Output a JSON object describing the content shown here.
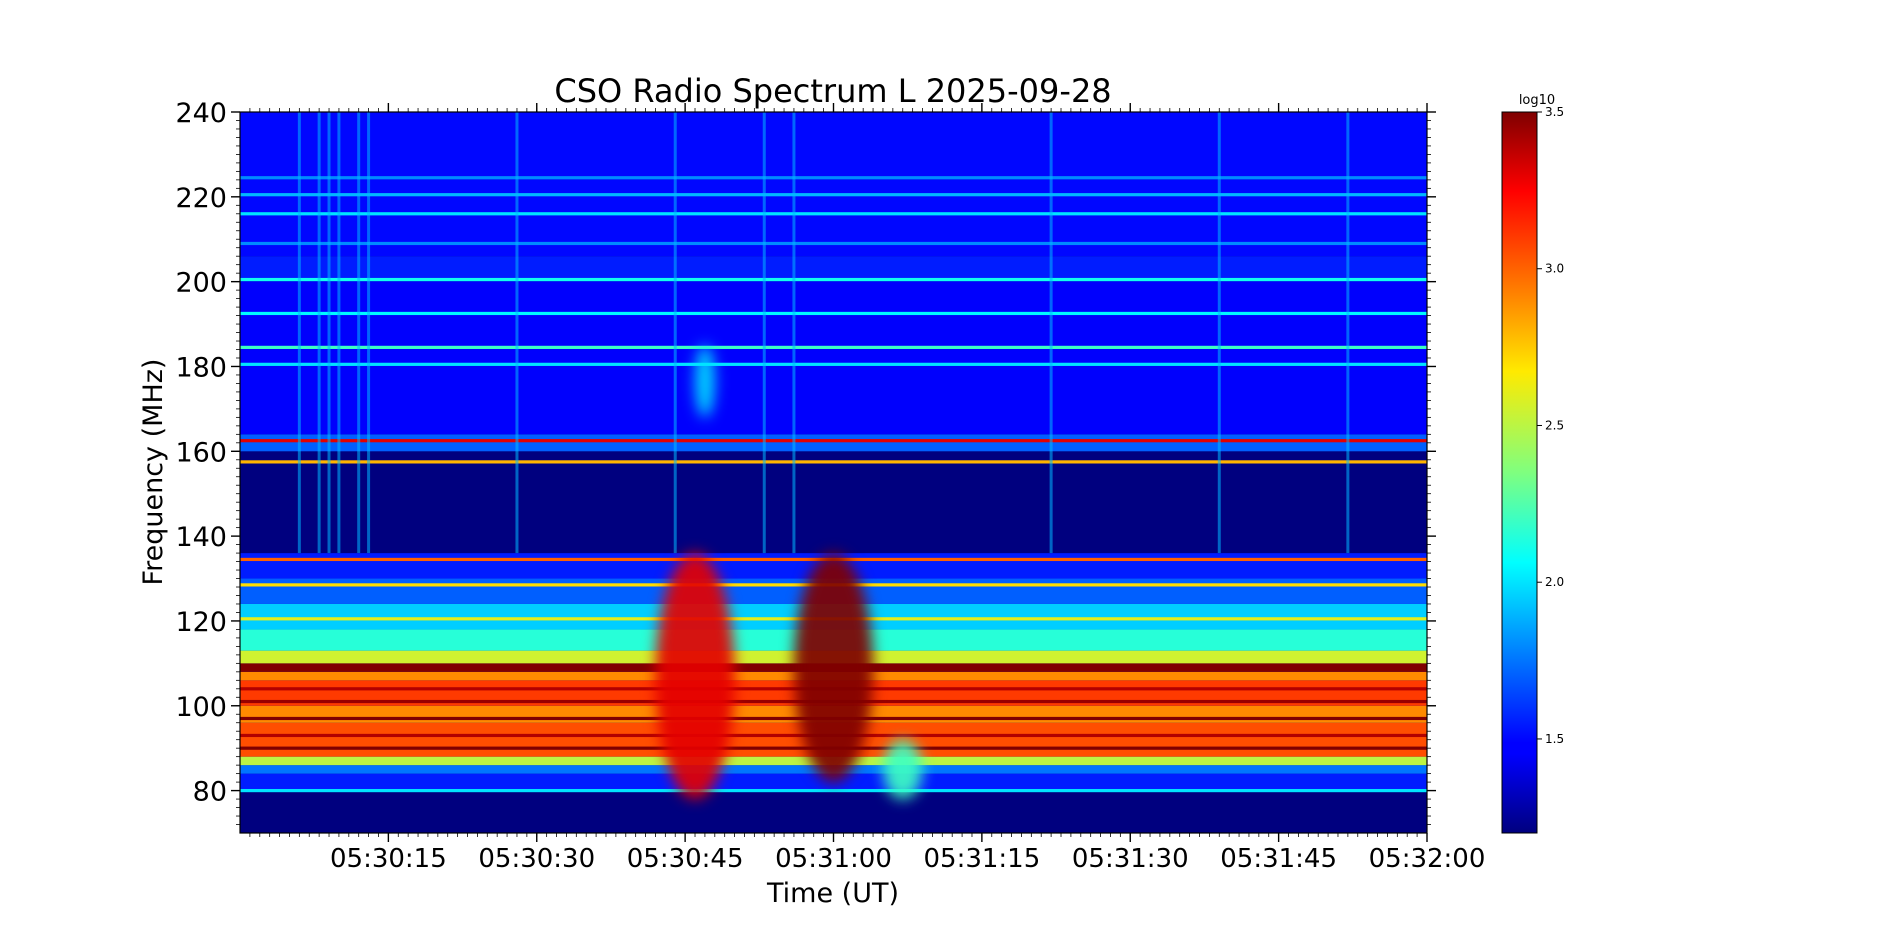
{
  "chart_data": {
    "type": "heatmap",
    "title": "CSO Radio Spectrum L 2025-09-28",
    "xlabel": "Time (UT)",
    "ylabel": "Frequency (MHz)",
    "x_range": [
      "05:30:00",
      "05:32:00"
    ],
    "x_ticks": [
      "05:30:15",
      "05:30:30",
      "05:30:45",
      "05:31:00",
      "05:31:15",
      "05:31:30",
      "05:31:45",
      "05:32:00"
    ],
    "y_range": [
      70,
      240
    ],
    "y_ticks": [
      80,
      100,
      120,
      140,
      160,
      180,
      200,
      220,
      240
    ],
    "colorbar": {
      "label": "log10",
      "range": [
        1.2,
        3.5
      ],
      "colormap": "jet",
      "ticks": [
        "1.5",
        "2.0",
        "2.5",
        "3.0",
        "3.5"
      ],
      "tick_values": [
        1.5,
        2.0,
        2.5,
        3.0,
        3.5
      ]
    },
    "grid": false,
    "bands": [
      {
        "f_low": 70,
        "f_high": 80,
        "value": 1.2
      },
      {
        "f_low": 80,
        "f_high": 84,
        "value": 1.55
      },
      {
        "f_low": 84,
        "f_high": 86,
        "value": 1.75
      },
      {
        "f_low": 86,
        "f_high": 88,
        "value": 2.5
      },
      {
        "f_low": 88,
        "f_high": 96,
        "value": 3.05
      },
      {
        "f_low": 96,
        "f_high": 100,
        "value": 2.9
      },
      {
        "f_low": 100,
        "f_high": 106,
        "value": 3.1
      },
      {
        "f_low": 106,
        "f_high": 108,
        "value": 2.9
      },
      {
        "f_low": 108,
        "f_high": 110,
        "value": 3.5
      },
      {
        "f_low": 110,
        "f_high": 113,
        "value": 2.55
      },
      {
        "f_low": 113,
        "f_high": 118,
        "value": 2.15
      },
      {
        "f_low": 118,
        "f_high": 124,
        "value": 1.95
      },
      {
        "f_low": 124,
        "f_high": 130,
        "value": 1.7
      },
      {
        "f_low": 130,
        "f_high": 136,
        "value": 1.55
      },
      {
        "f_low": 136,
        "f_high": 160,
        "value": 1.2
      },
      {
        "f_low": 160,
        "f_high": 164,
        "value": 1.7
      },
      {
        "f_low": 164,
        "f_high": 200,
        "value": 1.45
      },
      {
        "f_low": 200,
        "f_high": 206,
        "value": 1.55
      },
      {
        "f_low": 206,
        "f_high": 240,
        "value": 1.5
      }
    ],
    "lines": [
      {
        "f": 80,
        "value": 2.0
      },
      {
        "f": 90,
        "value": 3.5
      },
      {
        "f": 93,
        "value": 3.4
      },
      {
        "f": 97,
        "value": 3.5
      },
      {
        "f": 101,
        "value": 3.45
      },
      {
        "f": 104,
        "value": 3.4
      },
      {
        "f": 120.5,
        "value": 2.6
      },
      {
        "f": 128.5,
        "value": 2.7
      },
      {
        "f": 134.5,
        "value": 3.0
      },
      {
        "f": 157.5,
        "value": 2.8
      },
      {
        "f": 162.5,
        "value": 3.3
      },
      {
        "f": 180.5,
        "value": 2.0
      },
      {
        "f": 184.5,
        "value": 2.2
      },
      {
        "f": 192.5,
        "value": 2.05
      },
      {
        "f": 200.5,
        "value": 2.1
      },
      {
        "f": 209,
        "value": 1.8
      },
      {
        "f": 216,
        "value": 2.0
      },
      {
        "f": 220.5,
        "value": 1.9
      },
      {
        "f": 224.5,
        "value": 1.8
      }
    ],
    "bursts": [
      {
        "t_start": "05:30:42",
        "t_end": "05:30:50",
        "f_low": 78,
        "f_high": 136,
        "value": 3.3
      },
      {
        "t_start": "05:30:56",
        "t_end": "05:31:04",
        "f_low": 82,
        "f_high": 136,
        "value": 3.5
      },
      {
        "t_start": "05:31:05",
        "t_end": "05:31:09",
        "f_low": 78,
        "f_high": 92,
        "value": 2.2
      },
      {
        "t_start": "05:30:46",
        "t_end": "05:30:48",
        "f_low": 168,
        "f_high": 185,
        "value": 2.0
      }
    ],
    "vertical_streaks": [
      "05:30:06",
      "05:30:08",
      "05:30:09",
      "05:30:10",
      "05:30:12",
      "05:30:13",
      "05:30:28",
      "05:30:44",
      "05:30:53",
      "05:30:56",
      "05:31:22",
      "05:31:39",
      "05:31:52"
    ]
  }
}
